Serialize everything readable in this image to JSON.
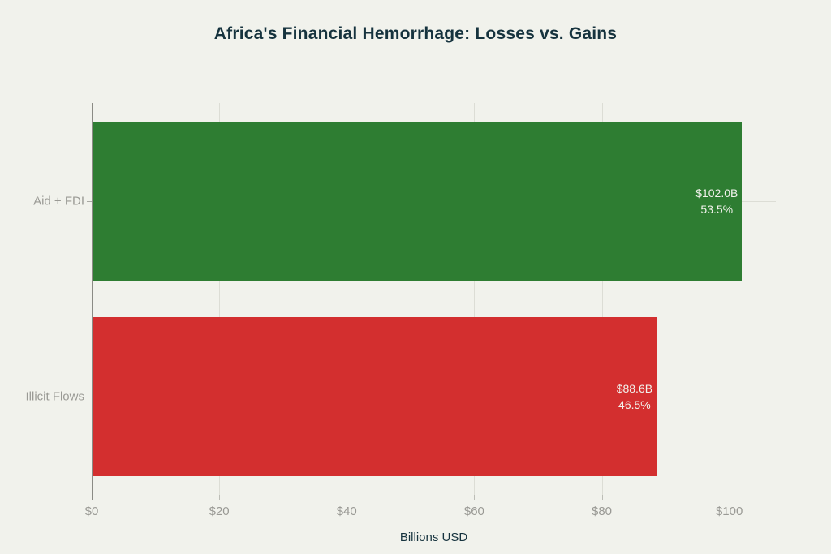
{
  "chart_data": {
    "type": "bar",
    "orientation": "horizontal",
    "title": "Africa's Financial Hemorrhage: Losses vs. Gains",
    "xlabel": "Billions USD",
    "ylabel": "",
    "categories": [
      "Aid + FDI",
      "Illicit Flows"
    ],
    "values": [
      102.0,
      88.6
    ],
    "value_labels": [
      "$102.0B",
      "$88.6B"
    ],
    "percent_labels": [
      "53.5%",
      "46.5%"
    ],
    "bar_colors": [
      "#2e7d32",
      "#d32f2f"
    ],
    "xlim": [
      0,
      107.3
    ],
    "xticks": [
      0,
      20,
      40,
      60,
      80,
      100
    ],
    "xtick_labels": [
      "$0",
      "$20",
      "$40",
      "$60",
      "$80",
      "$100"
    ],
    "grid": true,
    "legend": false
  },
  "colors": {
    "background": "#f1f2ec",
    "title_text": "#16333e",
    "axis_text": "#9a9a95",
    "grid_line": "#dcddd5",
    "axis_line": "#8b8b85",
    "bar_label_text": "#f1f2ec"
  }
}
